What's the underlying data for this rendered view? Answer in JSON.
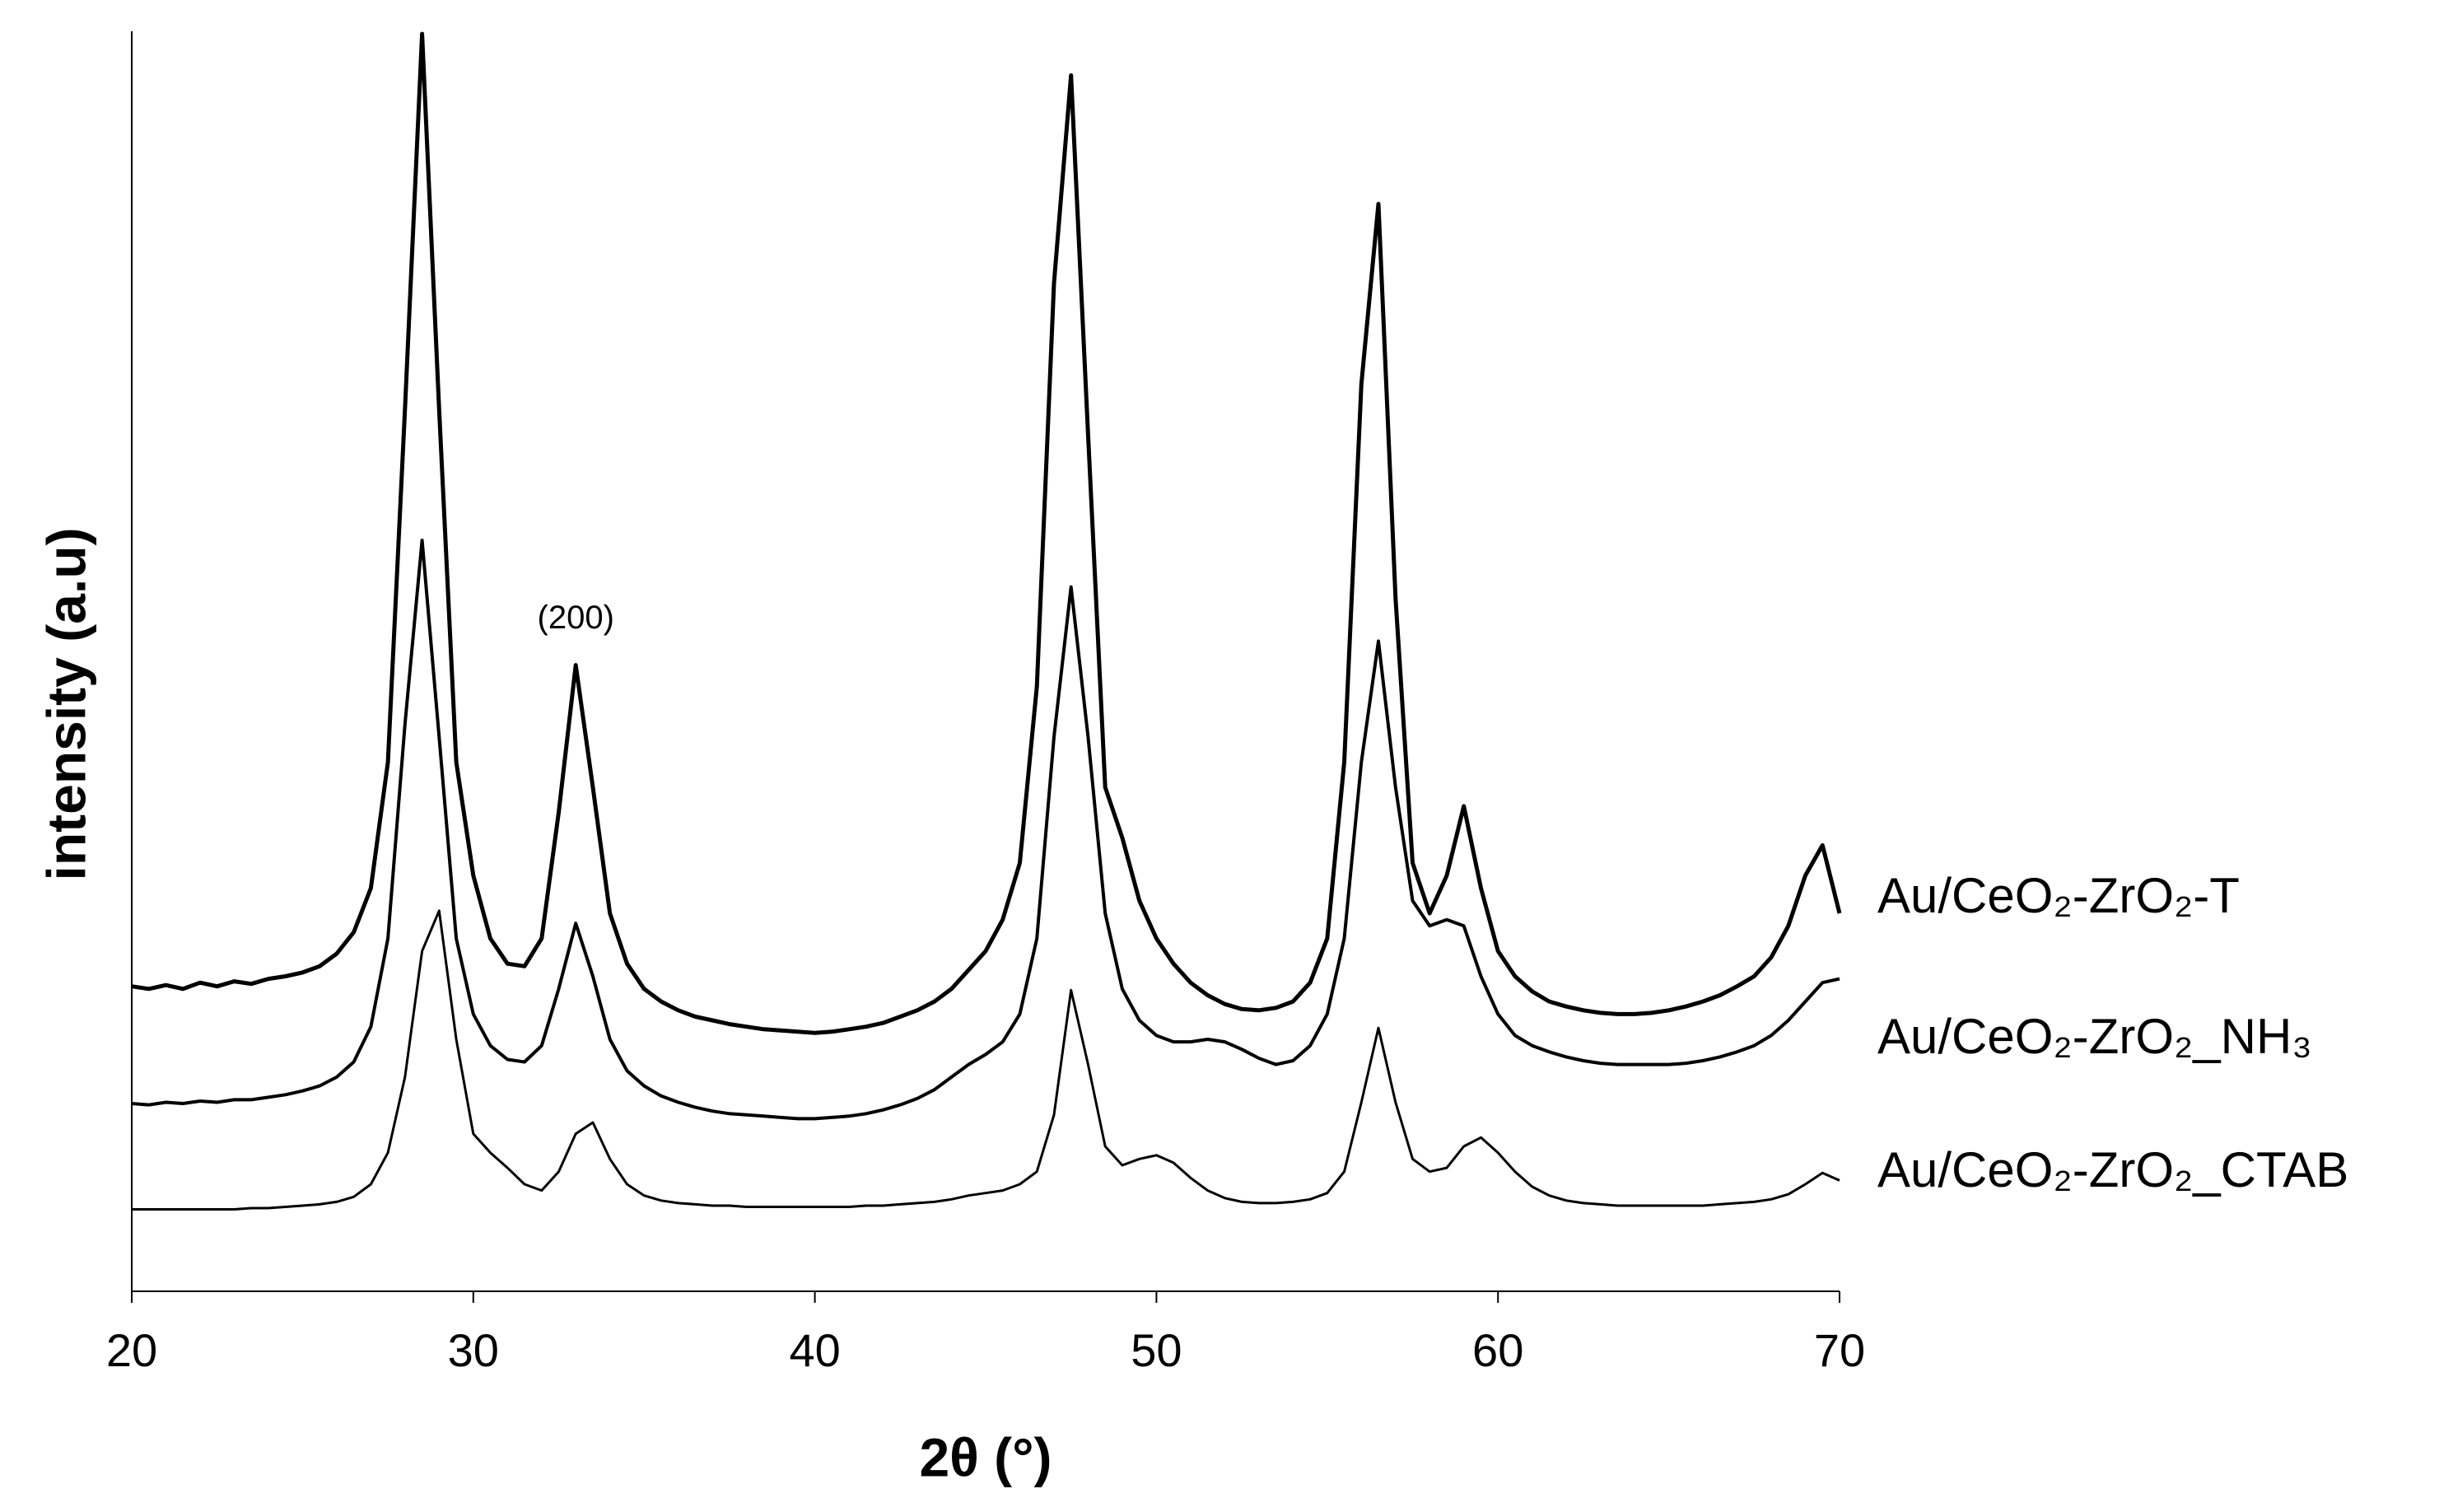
{
  "chart_data": {
    "type": "line",
    "x_label": "2θ (°)",
    "y_label": "intensity (a.u)",
    "xlim": [
      20,
      70
    ],
    "xticks": [
      20,
      30,
      40,
      50,
      60,
      70
    ],
    "ylim": [
      0,
      100
    ],
    "legend": "right",
    "annotations": [
      {
        "text": "(200)",
        "x": 33
      }
    ],
    "x": [
      20,
      20.5,
      21,
      21.5,
      22,
      22.5,
      23,
      23.5,
      24,
      24.5,
      25,
      25.5,
      26,
      26.5,
      27,
      27.5,
      28,
      28.5,
      29,
      29.5,
      30,
      30.5,
      31,
      31.5,
      32,
      32.5,
      33,
      33.5,
      34,
      34.5,
      35,
      35.5,
      36,
      36.5,
      37,
      37.5,
      38,
      38.5,
      39,
      39.5,
      40,
      40.5,
      41,
      41.5,
      42,
      42.5,
      43,
      43.5,
      44,
      44.5,
      45,
      45.5,
      46,
      46.5,
      47,
      47.5,
      48,
      48.5,
      49,
      49.5,
      50,
      50.5,
      51,
      51.5,
      52,
      52.5,
      53,
      53.5,
      54,
      54.5,
      55,
      55.5,
      56,
      56.5,
      57,
      57.5,
      58,
      58.5,
      59,
      59.5,
      60,
      60.5,
      61,
      61.5,
      62,
      62.5,
      63,
      63.5,
      64,
      64.5,
      65,
      65.5,
      66,
      66.5,
      67,
      67.5,
      68,
      68.5,
      69,
      69.5,
      70
    ],
    "series": [
      {
        "name": "Au/CeO₂-ZrO₂-T",
        "color": "#000000",
        "values": [
          24.2,
          24,
          24.3,
          24,
          24.5,
          24.2,
          24.6,
          24.4,
          24.8,
          25,
          25.3,
          25.8,
          26.8,
          28.5,
          32,
          42,
          70,
          99.8,
          70,
          42,
          33,
          28,
          26,
          25.8,
          28,
          38,
          49.7,
          40,
          30,
          26,
          24,
          23,
          22.3,
          21.8,
          21.5,
          21.2,
          21,
          20.8,
          20.7,
          20.6,
          20.5,
          20.6,
          20.8,
          21,
          21.3,
          21.8,
          22.3,
          23,
          24,
          25.5,
          27,
          29.5,
          34,
          48,
          80,
          96.5,
          68,
          40,
          36,
          31,
          28,
          26,
          24.5,
          23.5,
          22.8,
          22.4,
          22.3,
          22.5,
          23,
          24.5,
          28,
          42,
          72,
          86.3,
          55,
          34,
          30,
          33,
          38.5,
          32,
          27,
          25,
          23.8,
          23,
          22.6,
          22.3,
          22.1,
          22,
          22,
          22.1,
          22.3,
          22.6,
          23,
          23.5,
          24.2,
          25,
          26.5,
          29,
          33,
          35.4,
          30
        ]
      },
      {
        "name": "Au/CeO₂-ZrO₂_NH₃",
        "color": "#000000",
        "values": [
          14.9,
          14.8,
          15,
          14.9,
          15.1,
          15,
          15.2,
          15.2,
          15.4,
          15.6,
          15.9,
          16.3,
          17,
          18.2,
          21,
          28,
          45,
          59.6,
          44,
          28,
          22,
          19.5,
          18.4,
          18.2,
          19.5,
          24,
          29.2,
          25,
          20,
          17.5,
          16.3,
          15.5,
          15,
          14.6,
          14.3,
          14.1,
          14,
          13.9,
          13.8,
          13.7,
          13.7,
          13.8,
          13.9,
          14.1,
          14.4,
          14.8,
          15.3,
          16,
          17,
          18,
          18.8,
          19.8,
          22,
          28,
          44,
          55.9,
          44,
          30,
          24,
          21.5,
          20.3,
          19.8,
          19.8,
          20,
          19.8,
          19.2,
          18.5,
          18,
          18.3,
          19.5,
          22,
          28,
          42,
          51.6,
          40,
          31,
          29,
          29.5,
          29,
          25,
          22,
          20.3,
          19.5,
          19,
          18.6,
          18.3,
          18.1,
          18,
          18,
          18,
          18,
          18.1,
          18.3,
          18.6,
          19,
          19.5,
          20.3,
          21.5,
          23,
          24.5,
          24.8
        ]
      },
      {
        "name": "Au/CeO₂-ZrO₂_CTAB",
        "color": "#000000",
        "values": [
          6.5,
          6.5,
          6.5,
          6.5,
          6.5,
          6.5,
          6.5,
          6.6,
          6.6,
          6.7,
          6.8,
          6.9,
          7.1,
          7.5,
          8.5,
          11,
          17,
          27,
          30.2,
          20,
          12.5,
          11,
          9.8,
          8.5,
          8,
          9.5,
          12.5,
          13.4,
          10.5,
          8.5,
          7.6,
          7.2,
          7,
          6.9,
          6.8,
          6.8,
          6.7,
          6.7,
          6.7,
          6.7,
          6.7,
          6.7,
          6.7,
          6.8,
          6.8,
          6.9,
          7,
          7.1,
          7.3,
          7.6,
          7.8,
          8,
          8.5,
          9.5,
          14,
          23.9,
          18,
          11.5,
          10,
          10.5,
          10.8,
          10.2,
          9,
          8,
          7.4,
          7.1,
          7,
          7,
          7.1,
          7.3,
          7.8,
          9.5,
          15,
          20.9,
          15,
          10.5,
          9.5,
          9.8,
          11.5,
          12.2,
          11,
          9.5,
          8.3,
          7.6,
          7.2,
          7,
          6.9,
          6.8,
          6.8,
          6.8,
          6.8,
          6.8,
          6.8,
          6.9,
          7,
          7.1,
          7.3,
          7.7,
          8.5,
          9.4,
          8.8
        ]
      }
    ]
  }
}
